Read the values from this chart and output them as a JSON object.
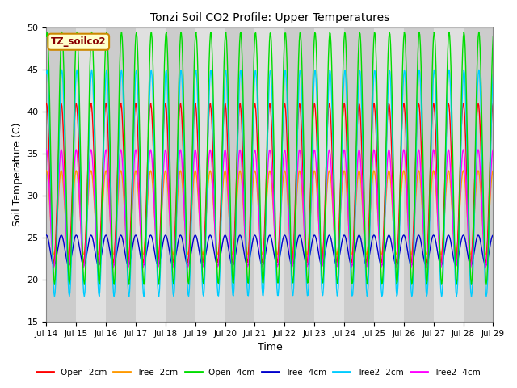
{
  "title": "Tonzi Soil CO2 Profile: Upper Temperatures",
  "xlabel": "Time",
  "ylabel": "Soil Temperature (C)",
  "ylim": [
    15,
    50
  ],
  "xlim": [
    0,
    360
  ],
  "legend_title": "TZ_soilco2",
  "series": [
    {
      "label": "Open -2cm",
      "color": "#ff0000"
    },
    {
      "label": "Tree -2cm",
      "color": "#ff9900"
    },
    {
      "label": "Open -4cm",
      "color": "#00dd00"
    },
    {
      "label": "Tree -4cm",
      "color": "#0000cc"
    },
    {
      "label": "Tree2 -2cm",
      "color": "#00ccff"
    },
    {
      "label": "Tree2 -4cm",
      "color": "#ff00ff"
    }
  ],
  "xtick_labels": [
    "Jul 14",
    "Jul 15",
    "Jul 16",
    "Jul 17",
    "Jul 18",
    "Jul 19",
    "Jul 20",
    "Jul 21",
    "Jul 22",
    "Jul 23",
    "Jul 24",
    "Jul 25",
    "Jul 26",
    "Jul 27",
    "Jul 28",
    "Jul 29"
  ],
  "xtick_positions": [
    0,
    24,
    48,
    72,
    96,
    120,
    144,
    168,
    192,
    216,
    240,
    264,
    288,
    312,
    336,
    360
  ],
  "ytick_labels": [
    "15",
    "20",
    "25",
    "30",
    "35",
    "40",
    "45",
    "50"
  ],
  "ytick_positions": [
    15,
    20,
    25,
    30,
    35,
    40,
    45,
    50
  ],
  "background_color": "#ffffff",
  "plot_bg_color": "#e0e0e0",
  "band_color": "#cccccc",
  "n_points": 720,
  "period": 12,
  "params": {
    "open_2cm": {
      "mean": 31.5,
      "amp": 9.5,
      "phase": 1.57
    },
    "tree_2cm": {
      "mean": 28.0,
      "amp": 5.0,
      "phase": 1.57
    },
    "open_4cm": {
      "mean": 34.5,
      "amp": 15.0,
      "phase": 1.3
    },
    "tree_4cm": {
      "mean": 23.5,
      "amp": 1.8,
      "phase": 1.57
    },
    "tree2_2cm": {
      "mean": 31.5,
      "amp": 13.5,
      "phase": 1.3
    },
    "tree2_4cm": {
      "mean": 28.5,
      "amp": 7.0,
      "phase": 1.57
    }
  }
}
